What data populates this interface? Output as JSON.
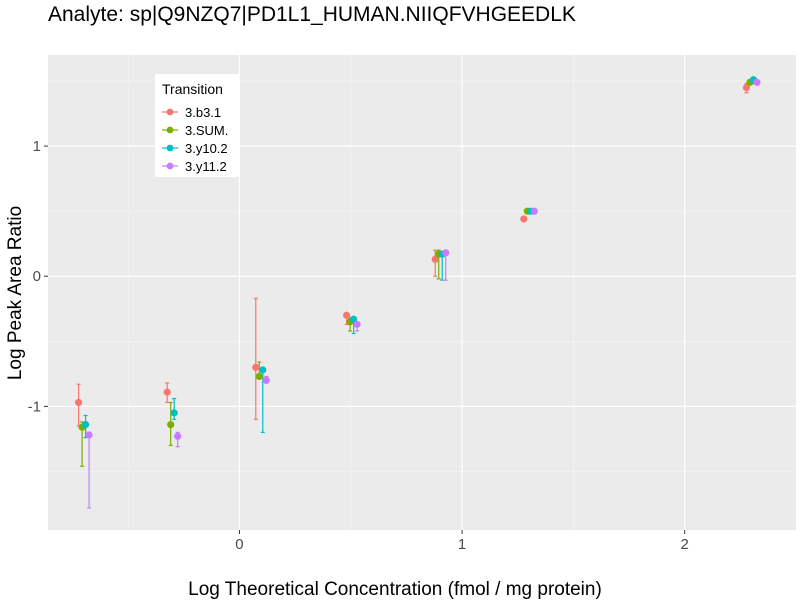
{
  "chart_data": {
    "type": "scatter",
    "title": "Analyte: sp|Q9NZQ7|PD1L1_HUMAN.NIIQFVHGEEDLK",
    "xlabel": "Log Theoretical Concentration (fmol / mg protein)",
    "ylabel": "Log Peak Area Ratio",
    "xlim": [
      -0.86,
      2.5
    ],
    "ylim": [
      -1.95,
      1.7
    ],
    "x_ticks": [
      0,
      1,
      2
    ],
    "x_tick_labels": [
      "0",
      "1",
      "2"
    ],
    "y_ticks": [
      -1,
      0,
      1
    ],
    "y_tick_labels": [
      "-1",
      "0",
      "1"
    ],
    "grid": true,
    "legend": {
      "title": "Transition",
      "position": "top-left"
    },
    "x": [
      -0.699,
      -0.301,
      0.097,
      0.505,
      0.903,
      1.301,
      2.301
    ],
    "series": [
      {
        "name": "3.b3.1",
        "color": "#F8766D",
        "values": [
          -0.97,
          -0.89,
          -0.7,
          -0.3,
          0.13,
          0.44,
          1.45
        ],
        "err_low": [
          -1.15,
          -0.97,
          -1.1,
          -0.37,
          0.0,
          0.43,
          1.41
        ],
        "err_high": [
          -0.83,
          -0.82,
          -0.17,
          -0.29,
          0.2,
          0.44,
          1.48
        ]
      },
      {
        "name": "3.SUM.",
        "color": "#7CAE00",
        "values": [
          -1.16,
          -1.14,
          -0.77,
          -0.35,
          0.17,
          0.5,
          1.49
        ],
        "err_low": [
          -1.46,
          -1.3,
          -0.78,
          -0.42,
          -0.02,
          0.49,
          1.47
        ],
        "err_high": [
          -1.12,
          -0.97,
          -0.66,
          -0.32,
          0.2,
          0.51,
          1.51
        ]
      },
      {
        "name": "3.y10.2",
        "color": "#00BFC4",
        "values": [
          -1.14,
          -1.05,
          -0.72,
          -0.33,
          0.17,
          0.5,
          1.51
        ],
        "err_low": [
          -1.24,
          -1.1,
          -1.2,
          -0.44,
          -0.03,
          0.48,
          1.48
        ],
        "err_high": [
          -1.07,
          -0.94,
          -0.7,
          -0.32,
          0.18,
          0.51,
          1.52
        ]
      },
      {
        "name": "3.y11.2",
        "color": "#C77CFF",
        "values": [
          -1.22,
          -1.23,
          -0.8,
          -0.37,
          0.18,
          0.5,
          1.49
        ],
        "err_low": [
          -1.78,
          -1.31,
          -0.82,
          -0.42,
          -0.03,
          0.48,
          1.47
        ],
        "err_high": [
          -1.2,
          -1.2,
          -0.77,
          -0.35,
          0.18,
          0.51,
          1.5
        ]
      }
    ]
  }
}
